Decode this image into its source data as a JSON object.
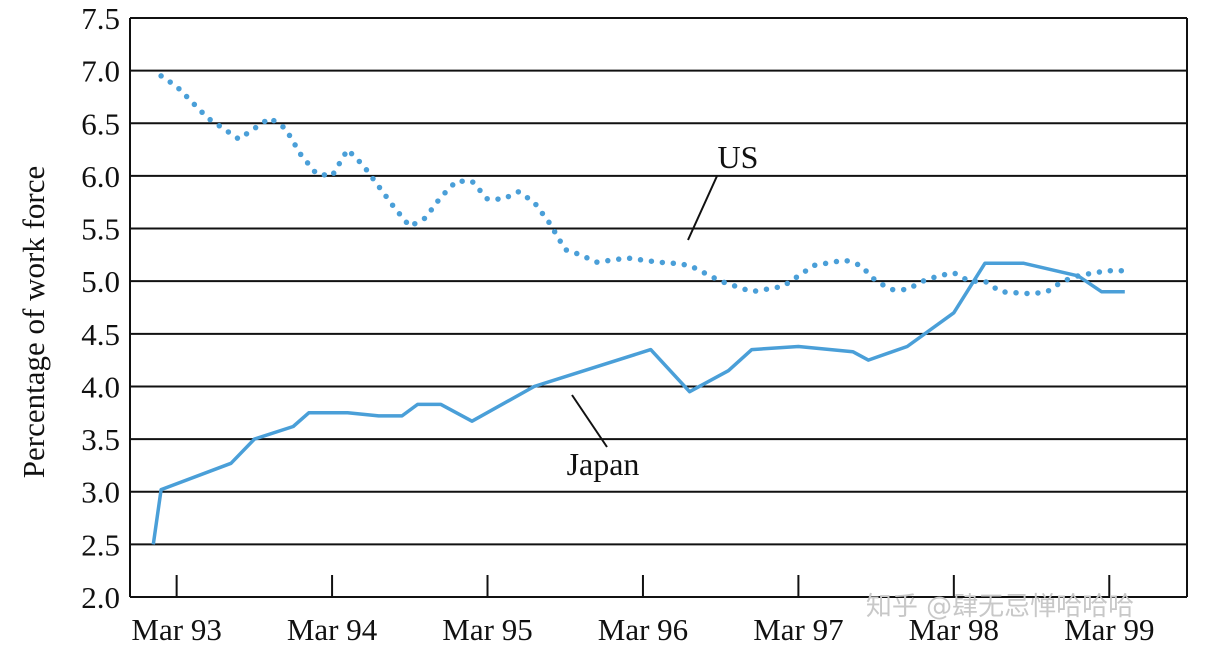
{
  "colors": {
    "line": "#4a9fd8",
    "grid": "#111111",
    "watermark": "#c8c8c8"
  },
  "watermark": "知乎 @肆无忌惮哈哈哈",
  "chart_data": {
    "type": "line",
    "title": "",
    "xlabel": "",
    "ylabel": "Percentage of work force",
    "ylim": [
      2.0,
      7.5
    ],
    "yticks": [
      "2.0",
      "2.5",
      "3.0",
      "3.5",
      "4.0",
      "4.5",
      "5.0",
      "5.5",
      "6.0",
      "6.5",
      "7.0",
      "7.5"
    ],
    "xticks": [
      "Mar 93",
      "Mar 94",
      "Mar 95",
      "Mar 96",
      "Mar 97",
      "Mar 98",
      "Mar 99"
    ],
    "grid": "horizontal",
    "series": [
      {
        "name": "US",
        "style": "dotted",
        "x": [
          1992.9,
          1993.0,
          1993.1,
          1993.2,
          1993.3,
          1993.4,
          1993.5,
          1993.6,
          1993.7,
          1993.8,
          1993.9,
          1994.0,
          1994.1,
          1994.2,
          1994.3,
          1994.4,
          1994.5,
          1994.6,
          1994.7,
          1994.8,
          1994.9,
          1995.0,
          1995.1,
          1995.2,
          1995.3,
          1995.4,
          1995.5,
          1995.6,
          1995.7,
          1995.8,
          1995.9,
          1996.0,
          1996.1,
          1996.2,
          1996.3,
          1996.5,
          1996.7,
          1996.9,
          1997.0,
          1997.1,
          1997.3,
          1997.4,
          1997.5,
          1997.6,
          1997.7,
          1997.8,
          1997.9,
          1998.0,
          1998.1,
          1998.2,
          1998.3,
          1998.5,
          1998.6,
          1998.7,
          1998.8,
          1998.9,
          1999.0,
          1999.1
        ],
        "values": [
          6.95,
          6.85,
          6.7,
          6.55,
          6.45,
          6.35,
          6.45,
          6.55,
          6.45,
          6.2,
          6.02,
          6.0,
          6.25,
          6.1,
          5.9,
          5.7,
          5.52,
          5.6,
          5.8,
          5.95,
          5.95,
          5.78,
          5.78,
          5.85,
          5.75,
          5.55,
          5.3,
          5.25,
          5.18,
          5.2,
          5.22,
          5.2,
          5.18,
          5.17,
          5.15,
          5.0,
          4.9,
          4.95,
          5.05,
          5.15,
          5.2,
          5.15,
          5.0,
          4.92,
          4.92,
          5.0,
          5.05,
          5.08,
          5.0,
          5.0,
          4.9,
          4.88,
          4.9,
          5.0,
          5.05,
          5.08,
          5.1,
          5.1
        ],
        "note_label": "US"
      },
      {
        "name": "Japan",
        "style": "solid",
        "x": [
          1992.85,
          1992.9,
          1993.35,
          1993.5,
          1993.75,
          1993.85,
          1994.1,
          1994.3,
          1994.45,
          1994.55,
          1994.7,
          1994.9,
          1995.3,
          1996.05,
          1996.3,
          1996.55,
          1996.7,
          1997.0,
          1997.35,
          1997.45,
          1997.7,
          1998.0,
          1998.2,
          1998.45,
          1998.8,
          1998.95,
          1999.1
        ],
        "values": [
          2.5,
          3.02,
          3.27,
          3.5,
          3.62,
          3.75,
          3.75,
          3.72,
          3.72,
          3.83,
          3.83,
          3.67,
          4.0,
          4.35,
          3.95,
          4.15,
          4.35,
          4.38,
          4.33,
          4.25,
          4.38,
          4.7,
          5.17,
          5.17,
          5.05,
          4.9,
          4.9
        ],
        "note_label": "Japan"
      }
    ]
  }
}
